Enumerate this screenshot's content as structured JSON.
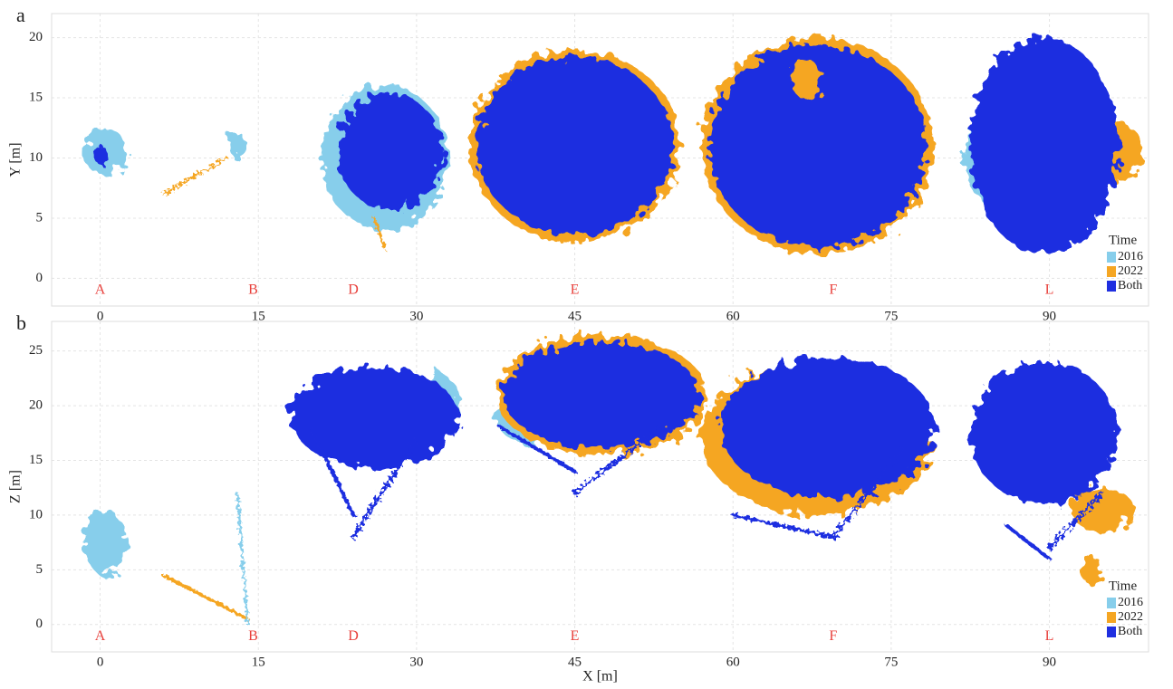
{
  "chart_data": [
    {
      "type": "scatter",
      "panel": "a",
      "ylabel": "Y [m]",
      "xlim": [
        -4.6,
        99.4
      ],
      "ylim": [
        -2.3,
        22
      ],
      "xticks": [
        0,
        15,
        30,
        45,
        60,
        75,
        90
      ],
      "yticks": [
        0,
        5,
        10,
        15,
        20
      ],
      "grid": true,
      "annotations": [
        {
          "text": "A",
          "x": 0,
          "y": -1
        },
        {
          "text": "B",
          "x": 14.5,
          "y": -1
        },
        {
          "text": "D",
          "x": 24,
          "y": -1
        },
        {
          "text": "E",
          "x": 45,
          "y": -1
        },
        {
          "text": "F",
          "x": 69.5,
          "y": -1
        },
        {
          "text": "L",
          "x": 90,
          "y": -1
        }
      ],
      "legend_title": "Time",
      "series": [
        {
          "name": "2016",
          "color": "#87ceeb"
        },
        {
          "name": "2022",
          "color": "#f5a623"
        },
        {
          "name": "Both",
          "color": "#1f2fe0"
        }
      ]
    },
    {
      "type": "scatter",
      "panel": "b",
      "ylabel": "Z [m]",
      "xlabel": "X [m]",
      "xlim": [
        -4.6,
        99.4
      ],
      "ylim": [
        -2.5,
        27.7
      ],
      "xticks": [
        0,
        15,
        30,
        45,
        60,
        75,
        90
      ],
      "yticks": [
        0,
        5,
        10,
        15,
        20,
        25
      ],
      "grid": true,
      "annotations": [
        {
          "text": "A",
          "x": 0,
          "y": -1.1
        },
        {
          "text": "B",
          "x": 14.5,
          "y": -1.1
        },
        {
          "text": "D",
          "x": 24,
          "y": -1.1
        },
        {
          "text": "E",
          "x": 45,
          "y": -1.1
        },
        {
          "text": "F",
          "x": 69.5,
          "y": -1.1
        },
        {
          "text": "L",
          "x": 90,
          "y": -1.1
        }
      ],
      "legend_title": "Time",
      "series": [
        {
          "name": "2016",
          "color": "#87ceeb"
        },
        {
          "name": "2022",
          "color": "#f5a623"
        },
        {
          "name": "Both",
          "color": "#1f2fe0"
        }
      ]
    }
  ]
}
